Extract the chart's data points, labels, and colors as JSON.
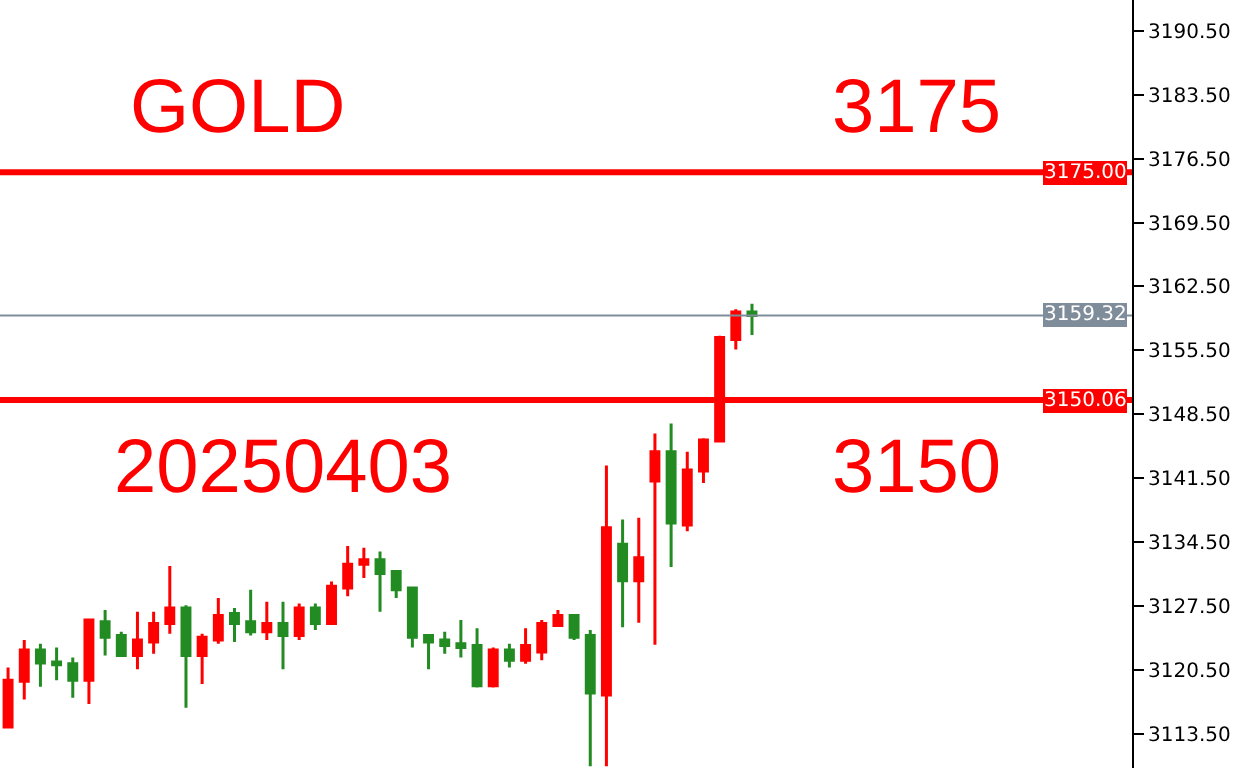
{
  "chart_data": {
    "type": "candlestick",
    "categories": [
      null,
      null,
      null,
      null,
      null,
      null,
      null,
      null,
      null,
      null,
      null,
      null,
      null,
      null,
      null,
      null,
      null,
      null,
      null,
      null,
      null,
      null,
      null,
      null,
      null,
      null,
      null,
      null,
      null,
      null,
      null,
      null,
      null,
      null,
      null,
      null,
      null,
      null,
      null,
      null,
      null,
      null,
      null,
      null,
      null,
      null,
      null,
      null,
      null,
      null,
      null,
      null,
      null,
      null,
      null,
      null,
      null,
      null,
      null,
      null,
      null,
      null,
      null,
      null,
      null,
      null,
      null,
      null,
      null,
      null
    ],
    "ohlc": [
      [
        3114.3,
        3120.8,
        3114.3,
        3119.4
      ],
      [
        3119.3,
        3123.8,
        3117.3,
        3122.7
      ],
      [
        3122.7,
        3123.4,
        3118.7,
        3121.3
      ],
      [
        3121.4,
        3123.0,
        3119.4,
        3121.1
      ],
      [
        3121.2,
        3121.9,
        3117.5,
        3119.4
      ],
      [
        3119.4,
        3126.0,
        3116.8,
        3126.0
      ],
      [
        3125.8,
        3127.1,
        3122.1,
        3124.1
      ],
      [
        3124.3,
        3124.7,
        3122.1,
        3122.1
      ],
      [
        3122.1,
        3126.9,
        3120.6,
        3123.8
      ],
      [
        3123.6,
        3126.9,
        3122.3,
        3125.6
      ],
      [
        3125.6,
        3131.9,
        3124.5,
        3127.3
      ],
      [
        3127.3,
        3127.6,
        3116.4,
        3122.1
      ],
      [
        3122.1,
        3124.5,
        3119.0,
        3124.1
      ],
      [
        3123.8,
        3128.4,
        3123.4,
        3126.5
      ],
      [
        3126.7,
        3127.3,
        3123.6,
        3125.6
      ],
      [
        3125.8,
        3129.3,
        3124.3,
        3124.7
      ],
      [
        3124.7,
        3128.0,
        3123.8,
        3125.6
      ],
      [
        3125.6,
        3128.0,
        3120.6,
        3124.3
      ],
      [
        3124.3,
        3127.8,
        3123.8,
        3127.3
      ],
      [
        3127.3,
        3127.8,
        3124.9,
        3125.6
      ],
      [
        3125.6,
        3130.2,
        3125.6,
        3129.7
      ],
      [
        3129.5,
        3134.1,
        3128.6,
        3132.1
      ],
      [
        3132.1,
        3133.9,
        3130.6,
        3132.6
      ],
      [
        3132.6,
        3133.5,
        3126.9,
        3131.1
      ],
      [
        3131.3,
        3131.3,
        3128.4,
        3129.3
      ],
      [
        3129.5,
        3129.5,
        3123.0,
        3124.1
      ],
      [
        3124.3,
        3124.3,
        3120.6,
        3123.6
      ],
      [
        3123.8,
        3124.7,
        3122.3,
        3123.2
      ],
      [
        3123.4,
        3126.0,
        3121.9,
        3123.0
      ],
      [
        3123.2,
        3125.1,
        3118.6,
        3118.8
      ],
      [
        3118.8,
        3123.0,
        3118.6,
        3122.7
      ],
      [
        3122.7,
        3123.4,
        3120.8,
        3121.6
      ],
      [
        3121.6,
        3125.1,
        3121.2,
        3123.2
      ],
      [
        3122.5,
        3126.0,
        3121.6,
        3125.6
      ],
      [
        3125.4,
        3127.1,
        3125.4,
        3126.5
      ],
      [
        3126.5,
        3126.5,
        3123.8,
        3124.1
      ],
      [
        3124.3,
        3124.9,
        3110.0,
        3118.0
      ],
      [
        3117.8,
        3142.9,
        3110.0,
        3136.1
      ],
      [
        3134.3,
        3137.0,
        3125.2,
        3130.3
      ],
      [
        3130.3,
        3137.2,
        3125.7,
        3132.8
      ],
      [
        3141.2,
        3146.4,
        3123.3,
        3144.4
      ],
      [
        3144.4,
        3147.5,
        3131.8,
        3136.6
      ],
      [
        3136.4,
        3144.4,
        3135.7,
        3142.4
      ],
      [
        3142.3,
        3145.9,
        3141.0,
        3145.7
      ],
      [
        3145.6,
        3157.1,
        3145.6,
        3156.9
      ],
      [
        3156.7,
        3160.0,
        3155.6,
        3159.7
      ],
      [
        3159.7,
        3160.6,
        3157.2,
        3159.32
      ],
      null,
      null,
      null,
      null,
      null,
      null,
      null,
      null,
      null,
      null,
      null,
      null,
      null,
      null,
      null,
      null,
      null,
      null,
      null,
      null,
      null,
      null,
      null
    ],
    "colors": [
      "#ff0000",
      "#ff0000",
      "#228b22",
      "#228b22",
      "#228b22",
      "#ff0000",
      "#228b22",
      "#228b22",
      "#ff0000",
      "#ff0000",
      "#ff0000",
      "#228b22",
      "#ff0000",
      "#ff0000",
      "#228b22",
      "#228b22",
      "#ff0000",
      "#228b22",
      "#ff0000",
      "#228b22",
      "#ff0000",
      "#ff0000",
      "#ff0000",
      "#228b22",
      "#228b22",
      "#228b22",
      "#228b22",
      "#228b22",
      "#228b22",
      "#228b22",
      "#ff0000",
      "#228b22",
      "#ff0000",
      "#ff0000",
      "#ff0000",
      "#228b22",
      "#228b22",
      "#ff0000",
      "#228b22",
      "#ff0000",
      "#ff0000",
      "#228b22",
      "#ff0000",
      "#ff0000",
      "#ff0000",
      "#ff0000",
      "#228b22",
      null,
      null,
      null,
      null,
      null,
      null,
      null,
      null,
      null,
      null,
      null,
      null,
      null,
      null,
      null,
      null,
      null,
      null,
      null,
      null,
      null,
      null,
      null
    ],
    "ylim": [
      3109.8,
      3193.85
    ],
    "yticks": [
      {
        "value": 3113.5,
        "label": "3113.50"
      },
      {
        "value": 3120.5,
        "label": "3120.50"
      },
      {
        "value": 3127.5,
        "label": "3127.50"
      },
      {
        "value": 3134.5,
        "label": "3134.50"
      },
      {
        "value": 3141.5,
        "label": "3141.50"
      },
      {
        "value": 3148.5,
        "label": "3148.50"
      },
      {
        "value": 3155.5,
        "label": "3155.50"
      },
      {
        "value": 3162.5,
        "label": "3162.50"
      },
      {
        "value": 3169.5,
        "label": "3169.50"
      },
      {
        "value": 3176.5,
        "label": "3176.50"
      },
      {
        "value": 3183.5,
        "label": "3183.50"
      },
      {
        "value": 3190.5,
        "label": "3190.50"
      }
    ],
    "tick_labels": "y",
    "grid": false,
    "ref_lines": [
      {
        "axis": "y",
        "value": 3175,
        "label": "3175.00",
        "color": "#ff0000"
      },
      {
        "axis": "y",
        "value": 3159.32,
        "label": "3159.32",
        "color": "#7f8c99"
      },
      {
        "axis": "y",
        "value": 3150.06,
        "label": "3150.06",
        "color": "#ff0000"
      }
    ],
    "annotations": [
      "GOLD",
      "3175",
      "20250403",
      "3150"
    ]
  }
}
